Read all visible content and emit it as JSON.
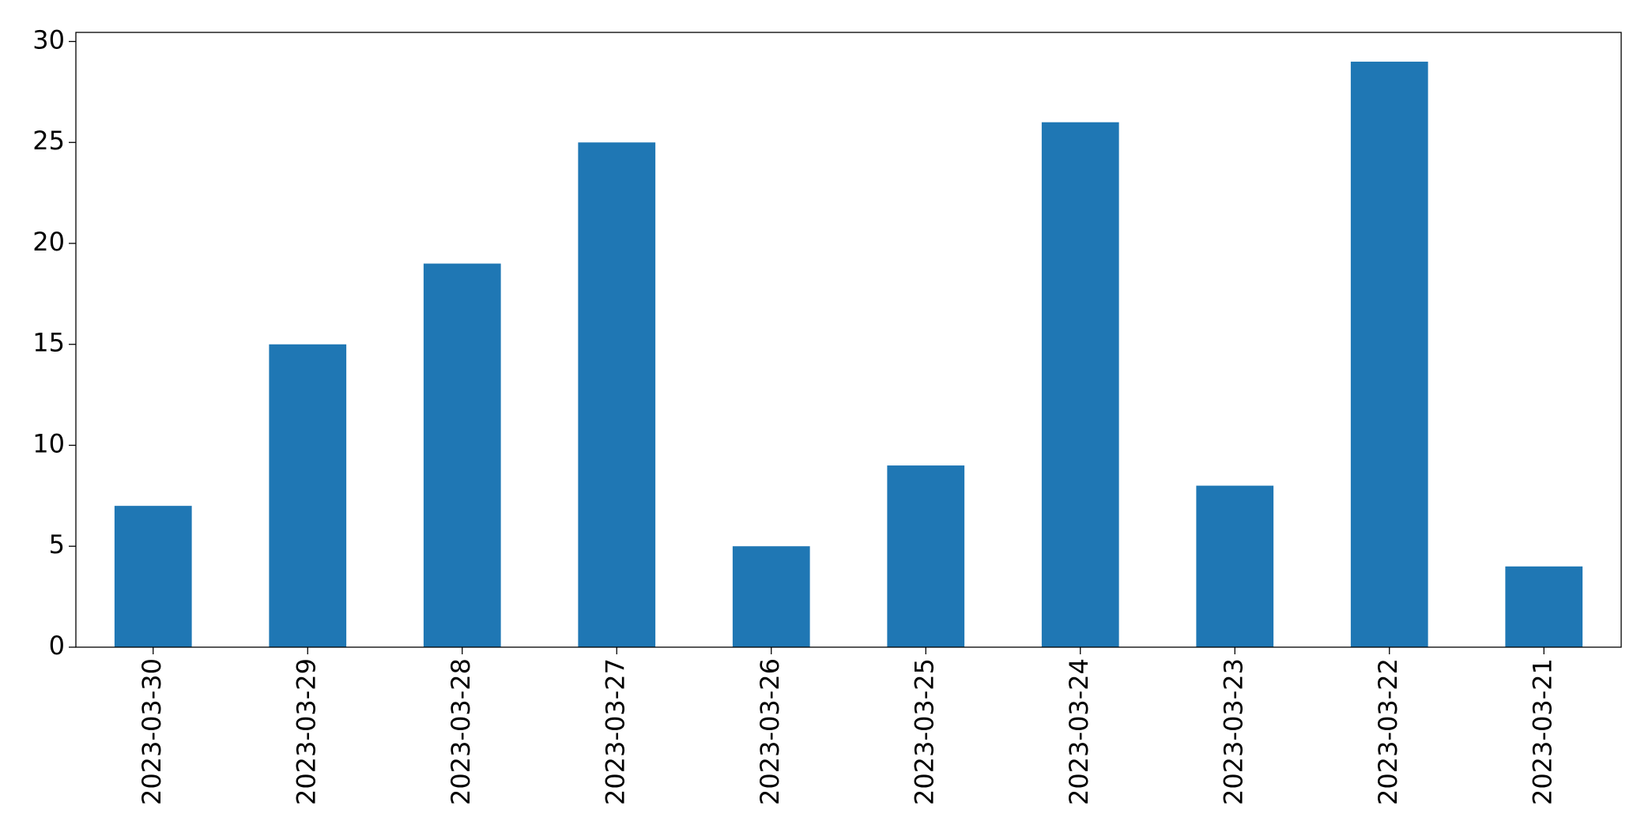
{
  "chart_data": {
    "type": "bar",
    "categories": [
      "2023-03-30",
      "2023-03-29",
      "2023-03-28",
      "2023-03-27",
      "2023-03-26",
      "2023-03-25",
      "2023-03-24",
      "2023-03-23",
      "2023-03-22",
      "2023-03-21"
    ],
    "values": [
      7,
      15,
      19,
      25,
      5,
      9,
      26,
      8,
      29,
      4
    ],
    "color": "#1f77b4",
    "ylim": [
      0,
      30.45
    ],
    "yticks": [
      0,
      5,
      10,
      15,
      20,
      25,
      30
    ],
    "grid": false
  }
}
